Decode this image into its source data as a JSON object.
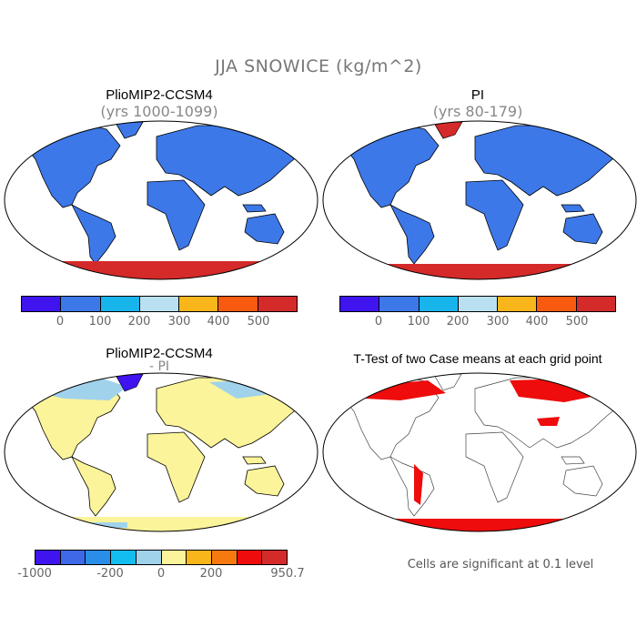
{
  "title": "JJA SNOWICE (kg/m^2)",
  "panels": [
    {
      "name": "PlioMIP2-CCSM4",
      "subtitle": "(yrs 1000-1099)"
    },
    {
      "name": "PI",
      "subtitle": "(yrs 80-179)"
    },
    {
      "name": "PlioMIP2-CCSM4",
      "subtitle": "- PI"
    },
    {
      "name": "T-Test of two Case means at each grid point",
      "subtitle": ""
    }
  ],
  "colorbar_main": {
    "colors": [
      "#3f14ee",
      "#3d78e8",
      "#17b5ec",
      "#b8e0f0",
      "#f8b61a",
      "#f85a10",
      "#d42a2a"
    ],
    "labels": [
      "0",
      "100",
      "200",
      "300",
      "400",
      "500"
    ]
  },
  "colorbar_diff": {
    "colors": [
      "#3f14ee",
      "#3d68e8",
      "#2a8ee8",
      "#14bdf0",
      "#a0d2ec",
      "#fbf49a",
      "#f8b61a",
      "#f67a10",
      "#ee0c0c",
      "#d42a2a"
    ],
    "labels": [
      "-1000",
      "-200",
      "0",
      "200",
      "950.7"
    ]
  },
  "significance_note": "Cells are significant at 0.1 level",
  "map_colors": {
    "land_main": "#3d78e8",
    "antarctic_ice": "#d42a2a",
    "diff_land": "#fbf49a",
    "diff_light": "#a0d2ec",
    "diff_blue": "#3f14ee",
    "signif": "#ee0c0c"
  }
}
